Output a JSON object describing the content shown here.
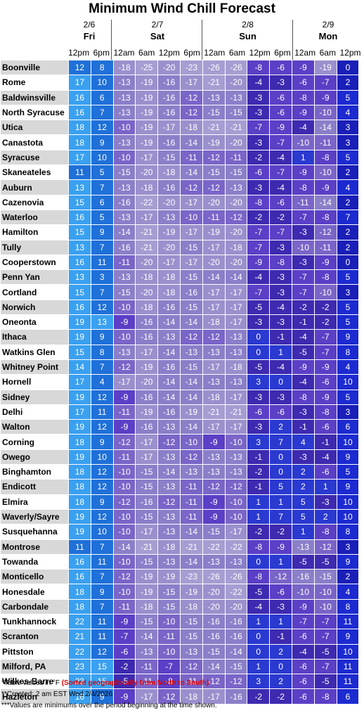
{
  "title": "Minimum Wind Chill Forecast",
  "days": [
    {
      "date": "2/6",
      "name": "Fri",
      "times": [
        "12pm",
        "6pm"
      ]
    },
    {
      "date": "2/7",
      "name": "Sat",
      "times": [
        "12am",
        "6am",
        "12pm",
        "6pm"
      ]
    },
    {
      "date": "2/8",
      "name": "Sun",
      "times": [
        "12am",
        "6am",
        "12pm",
        "6pm"
      ]
    },
    {
      "date": "2/9",
      "name": "Mon",
      "times": [
        "12am",
        "6am",
        "12pm"
      ]
    }
  ],
  "footnotes": {
    "line1": "*Table values in °F ",
    "line1_red": "(Sorted geographically from North to South)",
    "line2": "**Created: 2 am EST Wed 2/4/2026",
    "line3": "***Values are minimums over the period beginning at the time shown."
  },
  "chart_data": {
    "type": "table",
    "title": "Minimum Wind Chill Forecast",
    "columns": [
      "2/6 Fri 12pm",
      "2/6 Fri 6pm",
      "2/7 Sat 12am",
      "2/7 Sat 6am",
      "2/7 Sat 12pm",
      "2/7 Sat 6pm",
      "2/8 Sun 12am",
      "2/8 Sun 6am",
      "2/8 Sun 12pm",
      "2/8 Sun 6pm",
      "2/9 Mon 12am",
      "2/9 Mon 6am",
      "2/9 Mon 12pm"
    ],
    "rows": [
      {
        "city": "Boonville",
        "values": [
          12,
          8,
          -18,
          -25,
          -20,
          -23,
          -26,
          -26,
          -8,
          -6,
          -9,
          -19,
          0
        ]
      },
      {
        "city": "Rome",
        "values": [
          17,
          10,
          -13,
          -19,
          -16,
          -17,
          -21,
          -20,
          -4,
          -3,
          -6,
          -7,
          2
        ]
      },
      {
        "city": "Baldwinsville",
        "values": [
          16,
          6,
          -13,
          -19,
          -16,
          -12,
          -13,
          -13,
          -3,
          -6,
          -8,
          -9,
          5
        ]
      },
      {
        "city": "North Syracuse",
        "values": [
          16,
          7,
          -13,
          -19,
          -16,
          -12,
          -15,
          -15,
          -3,
          -6,
          -9,
          -10,
          4
        ]
      },
      {
        "city": "Utica",
        "values": [
          18,
          12,
          -10,
          -19,
          -17,
          -18,
          -21,
          -21,
          -7,
          -9,
          -4,
          -14,
          3
        ]
      },
      {
        "city": "Canastota",
        "values": [
          18,
          9,
          -13,
          -19,
          -16,
          -14,
          -19,
          -20,
          -3,
          -7,
          -10,
          -11,
          3
        ]
      },
      {
        "city": "Syracuse",
        "values": [
          17,
          10,
          -10,
          -17,
          -15,
          -11,
          -12,
          -11,
          -2,
          -4,
          1,
          -8,
          5
        ]
      },
      {
        "city": "Skaneateles",
        "values": [
          11,
          5,
          -15,
          -20,
          -18,
          -14,
          -15,
          -15,
          -6,
          -7,
          -9,
          -10,
          2
        ]
      },
      {
        "city": "Auburn",
        "values": [
          13,
          7,
          -13,
          -18,
          -16,
          -12,
          -12,
          -13,
          -3,
          -4,
          -8,
          -9,
          4
        ]
      },
      {
        "city": "Cazenovia",
        "values": [
          15,
          6,
          -16,
          -22,
          -20,
          -17,
          -20,
          -20,
          -8,
          -6,
          -11,
          -14,
          2
        ]
      },
      {
        "city": "Waterloo",
        "values": [
          16,
          5,
          -13,
          -17,
          -13,
          -10,
          -11,
          -12,
          -2,
          -2,
          -7,
          -8,
          7
        ]
      },
      {
        "city": "Hamilton",
        "values": [
          15,
          9,
          -14,
          -21,
          -19,
          -17,
          -19,
          -20,
          -7,
          -7,
          -3,
          -12,
          2
        ]
      },
      {
        "city": "Tully",
        "values": [
          13,
          7,
          -16,
          -21,
          -20,
          -15,
          -17,
          -18,
          -7,
          -3,
          -10,
          -11,
          2
        ]
      },
      {
        "city": "Cooperstown",
        "values": [
          16,
          11,
          -11,
          -20,
          -17,
          -17,
          -20,
          -20,
          -9,
          -8,
          -3,
          -9,
          0
        ]
      },
      {
        "city": "Penn Yan",
        "values": [
          13,
          3,
          -13,
          -18,
          -18,
          -15,
          -14,
          -14,
          -4,
          -3,
          -7,
          -8,
          5
        ]
      },
      {
        "city": "Cortland",
        "values": [
          15,
          7,
          -15,
          -20,
          -18,
          -16,
          -17,
          -17,
          -7,
          -3,
          -7,
          -10,
          3
        ]
      },
      {
        "city": "Norwich",
        "values": [
          16,
          12,
          -10,
          -18,
          -16,
          -15,
          -17,
          -17,
          -5,
          -4,
          -2,
          -2,
          5
        ]
      },
      {
        "city": "Oneonta",
        "values": [
          19,
          13,
          -9,
          -16,
          -14,
          -14,
          -18,
          -17,
          -3,
          -3,
          -1,
          -2,
          5
        ]
      },
      {
        "city": "Ithaca",
        "values": [
          19,
          9,
          -10,
          -16,
          -13,
          -12,
          -12,
          -13,
          0,
          -1,
          -4,
          -7,
          9
        ]
      },
      {
        "city": "Watkins Glen",
        "values": [
          15,
          8,
          -13,
          -17,
          -14,
          -13,
          -13,
          -13,
          0,
          1,
          -5,
          -7,
          8
        ]
      },
      {
        "city": "Whitney Point",
        "values": [
          14,
          7,
          -12,
          -19,
          -16,
          -15,
          -17,
          -18,
          -5,
          -4,
          -9,
          -9,
          4
        ]
      },
      {
        "city": "Hornell",
        "values": [
          17,
          4,
          -17,
          -20,
          -14,
          -14,
          -13,
          -13,
          3,
          0,
          -4,
          -6,
          10
        ]
      },
      {
        "city": "Sidney",
        "values": [
          19,
          12,
          -9,
          -16,
          -14,
          -14,
          -18,
          -17,
          -3,
          -3,
          -8,
          -9,
          5
        ]
      },
      {
        "city": "Delhi",
        "values": [
          17,
          11,
          -11,
          -19,
          -16,
          -19,
          -21,
          -21,
          -6,
          -6,
          -3,
          -8,
          3
        ]
      },
      {
        "city": "Walton",
        "values": [
          19,
          12,
          -9,
          -16,
          -13,
          -14,
          -17,
          -17,
          -3,
          2,
          -1,
          -6,
          6
        ]
      },
      {
        "city": "Corning",
        "values": [
          18,
          9,
          -12,
          -17,
          -12,
          -10,
          -9,
          -10,
          3,
          7,
          4,
          -1,
          10
        ]
      },
      {
        "city": "Owego",
        "values": [
          19,
          10,
          -11,
          -17,
          -13,
          -12,
          -13,
          -13,
          -1,
          0,
          -3,
          -4,
          9
        ]
      },
      {
        "city": "Binghamton",
        "values": [
          18,
          12,
          -10,
          -15,
          -14,
          -13,
          -13,
          -13,
          -2,
          0,
          2,
          -6,
          5
        ]
      },
      {
        "city": "Endicott",
        "values": [
          18,
          12,
          -10,
          -15,
          -13,
          -11,
          -12,
          -12,
          -1,
          5,
          2,
          1,
          9
        ]
      },
      {
        "city": "Elmira",
        "values": [
          18,
          9,
          -12,
          -16,
          -12,
          -11,
          -9,
          -10,
          1,
          1,
          5,
          -3,
          10
        ]
      },
      {
        "city": "Waverly/Sayre",
        "values": [
          19,
          12,
          -10,
          -15,
          -13,
          -11,
          -9,
          -10,
          1,
          7,
          5,
          2,
          10
        ]
      },
      {
        "city": "Susquehanna",
        "values": [
          19,
          10,
          -10,
          -17,
          -13,
          -14,
          -15,
          -17,
          -2,
          -2,
          1,
          -8,
          8
        ]
      },
      {
        "city": "Montrose",
        "values": [
          11,
          7,
          -14,
          -21,
          -18,
          -21,
          -22,
          -22,
          -8,
          -9,
          -13,
          -12,
          3
        ]
      },
      {
        "city": "Towanda",
        "values": [
          16,
          11,
          -10,
          -15,
          -13,
          -14,
          -13,
          -13,
          0,
          1,
          -5,
          -5,
          9
        ]
      },
      {
        "city": "Monticello",
        "values": [
          16,
          7,
          -12,
          -19,
          -19,
          -23,
          -26,
          -26,
          -8,
          -12,
          -16,
          -15,
          2
        ]
      },
      {
        "city": "Honesdale",
        "values": [
          18,
          9,
          -10,
          -19,
          -15,
          -19,
          -20,
          -22,
          -5,
          -6,
          -10,
          -10,
          4
        ]
      },
      {
        "city": "Carbondale",
        "values": [
          18,
          7,
          -11,
          -18,
          -15,
          -18,
          -20,
          -20,
          -4,
          -3,
          -9,
          -10,
          8
        ]
      },
      {
        "city": "Tunkhannock",
        "values": [
          22,
          11,
          -9,
          -15,
          -10,
          -15,
          -16,
          -16,
          1,
          1,
          -7,
          -7,
          11
        ]
      },
      {
        "city": "Scranton",
        "values": [
          21,
          11,
          -7,
          -14,
          -11,
          -15,
          -16,
          -16,
          0,
          -1,
          -6,
          -7,
          9
        ]
      },
      {
        "city": "Pittston",
        "values": [
          22,
          12,
          -6,
          -13,
          -10,
          -13,
          -15,
          -14,
          0,
          2,
          -4,
          -5,
          10
        ]
      },
      {
        "city": "Milford, PA",
        "values": [
          23,
          15,
          -2,
          -11,
          -7,
          -12,
          -14,
          -15,
          1,
          0,
          -6,
          -7,
          11
        ]
      },
      {
        "city": "Wilkes-Barre",
        "values": [
          22,
          15,
          -5,
          -11,
          -8,
          -11,
          -12,
          -12,
          3,
          2,
          -6,
          -5,
          11
        ]
      },
      {
        "city": "Hazleton",
        "values": [
          16,
          9,
          -9,
          -17,
          -12,
          -18,
          -17,
          -16,
          -2,
          -2,
          -6,
          -8,
          6
        ]
      }
    ]
  }
}
